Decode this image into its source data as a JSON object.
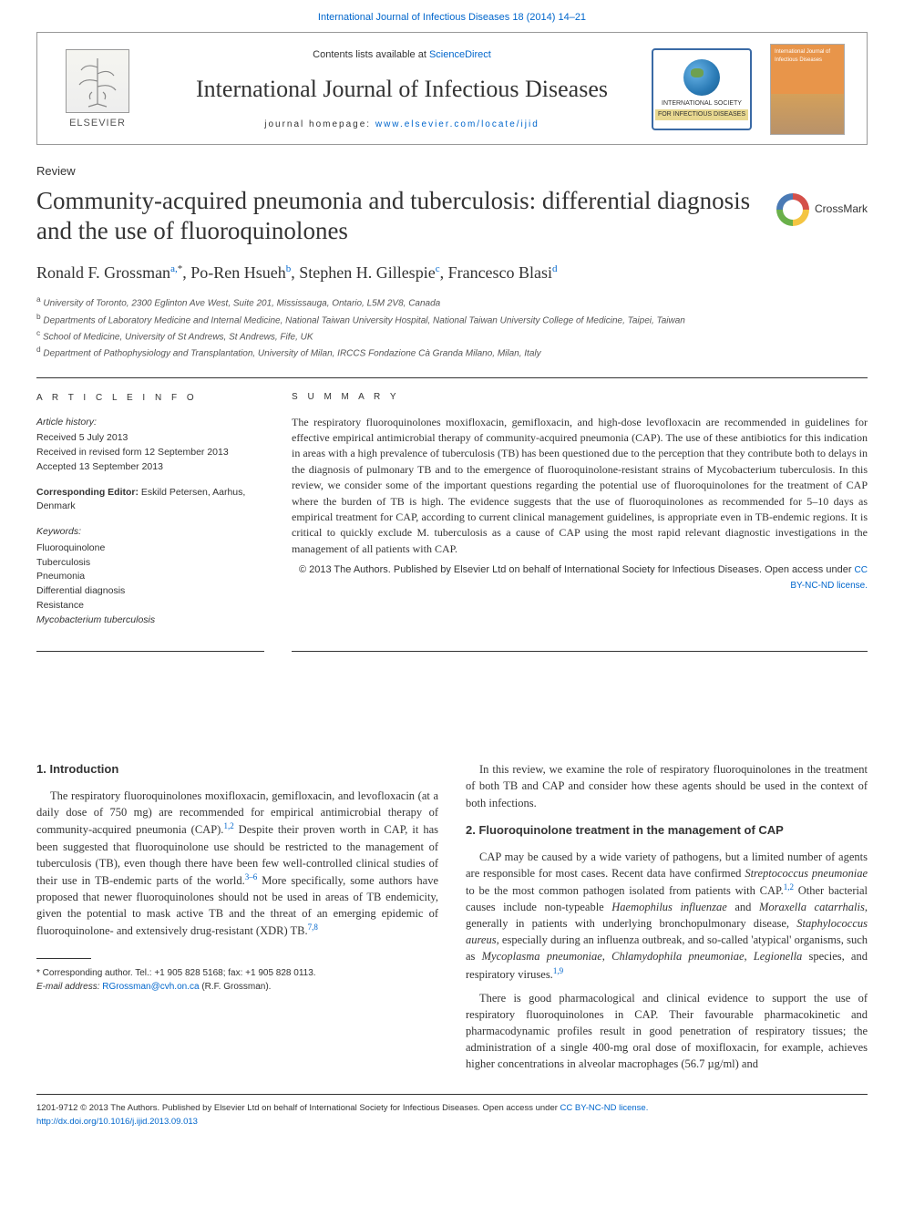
{
  "colors": {
    "link": "#0066cc",
    "text": "#333333",
    "rule": "#333333",
    "border": "#999999",
    "background": "#ffffff"
  },
  "typography": {
    "serif": "Georgia, 'Times New Roman', serif",
    "sans": "Arial, sans-serif",
    "title_size_pt": 27,
    "journal_title_size_pt": 26,
    "body_size_pt": 12.5,
    "abstract_size_pt": 12,
    "info_size_pt": 10.5
  },
  "top_citation": "International Journal of Infectious Diseases 18 (2014) 14–21",
  "header": {
    "contents_prefix": "Contents lists available at ",
    "contents_link": "ScienceDirect",
    "journal_title": "International Journal of Infectious Diseases",
    "homepage_prefix": "journal homepage: ",
    "homepage_url": "www.elsevier.com/locate/ijid",
    "publisher_name": "ELSEVIER",
    "society_line1": "INTERNATIONAL SOCIETY",
    "society_line2": "FOR INFECTIOUS DISEASES",
    "cover_text": "International Journal of Infectious Diseases"
  },
  "article": {
    "type": "Review",
    "title": "Community-acquired pneumonia and tuberculosis: differential diagnosis and the use of fluoroquinolones",
    "crossmark": "CrossMark",
    "authors_html": "Ronald F. Grossman<sup>a,</sup><sup class='ast'>*</sup>, Po-Ren Hsueh<sup>b</sup>, Stephen H. Gillespie<sup>c</sup>, Francesco Blasi<sup>d</sup>",
    "affiliations": [
      "a University of Toronto, 2300 Eglinton Ave West, Suite 201, Mississauga, Ontario, L5M 2V8, Canada",
      "b Departments of Laboratory Medicine and Internal Medicine, National Taiwan University Hospital, National Taiwan University College of Medicine, Taipei, Taiwan",
      "c School of Medicine, University of St Andrews, St Andrews, Fife, UK",
      "d Department of Pathophysiology and Transplantation, University of Milan, IRCCS Fondazione Cà Granda Milano, Milan, Italy"
    ]
  },
  "info": {
    "label": "A R T I C L E   I N F O",
    "history_label": "Article history:",
    "history": [
      "Received 5 July 2013",
      "Received in revised form 12 September 2013",
      "Accepted 13 September 2013"
    ],
    "editor_label": "Corresponding Editor:",
    "editor": "Eskild Petersen, Aarhus, Denmark",
    "keywords_label": "Keywords:",
    "keywords": [
      "Fluoroquinolone",
      "Tuberculosis",
      "Pneumonia",
      "Differential diagnosis",
      "Resistance",
      "Mycobacterium tuberculosis"
    ]
  },
  "summary": {
    "label": "S U M M A R Y",
    "text": "The respiratory fluoroquinolones moxifloxacin, gemifloxacin, and high-dose levofloxacin are recommended in guidelines for effective empirical antimicrobial therapy of community-acquired pneumonia (CAP). The use of these antibiotics for this indication in areas with a high prevalence of tuberculosis (TB) has been questioned due to the perception that they contribute both to delays in the diagnosis of pulmonary TB and to the emergence of fluoroquinolone-resistant strains of Mycobacterium tuberculosis. In this review, we consider some of the important questions regarding the potential use of fluoroquinolones for the treatment of CAP where the burden of TB is high. The evidence suggests that the use of fluoroquinolones as recommended for 5–10 days as empirical treatment for CAP, according to current clinical management guidelines, is appropriate even in TB-endemic regions. It is critical to quickly exclude M. tuberculosis as a cause of CAP using the most rapid relevant diagnostic investigations in the management of all patients with CAP.",
    "copyright": "© 2013 The Authors. Published by Elsevier Ltd on behalf of International Society for Infectious Diseases.",
    "license_prefix": "Open access under ",
    "license_link": "CC BY-NC-ND license."
  },
  "body": {
    "s1_heading": "1. Introduction",
    "s1_p1": "The respiratory fluoroquinolones moxifloxacin, gemifloxacin, and levofloxacin (at a daily dose of 750 mg) are recommended for empirical antimicrobial therapy of community-acquired pneumonia (CAP).<sup>1,2</sup> Despite their proven worth in CAP, it has been suggested that fluoroquinolone use should be restricted to the management of tuberculosis (TB), even though there have been few well-controlled clinical studies of their use in TB-endemic parts of the world.<sup>3–6</sup> More specifically, some authors have proposed that newer fluoroquinolones should not be used in areas of TB endemicity, given the potential to mask active TB and the threat of an emerging epidemic of fluoroquinolone- and extensively drug-resistant (XDR) TB.<sup>7,8</sup>",
    "s1_p2": "In this review, we examine the role of respiratory fluoroquinolones in the treatment of both TB and CAP and consider how these agents should be used in the context of both infections.",
    "s2_heading": "2. Fluoroquinolone treatment in the management of CAP",
    "s2_p1": "CAP may be caused by a wide variety of pathogens, but a limited number of agents are responsible for most cases. Recent data have confirmed <em>Streptococcus pneumoniae</em> to be the most common pathogen isolated from patients with CAP.<sup>1,2</sup> Other bacterial causes include non-typeable <em>Haemophilus influenzae</em> and <em>Moraxella catarrhalis</em>, generally in patients with underlying bronchopulmonary disease, <em>Staphylococcus aureus</em>, especially during an influenza outbreak, and so-called 'atypical' organisms, such as <em>Mycoplasma pneumoniae</em>, <em>Chlamydophila pneumoniae</em>, <em>Legionella</em> species, and respiratory viruses.<sup>1,9</sup>",
    "s2_p2": "There is good pharmacological and clinical evidence to support the use of respiratory fluoroquinolones in CAP. Their favourable pharmacokinetic and pharmacodynamic profiles result in good penetration of respiratory tissues; the administration of a single 400-mg oral dose of moxifloxacin, for example, achieves higher concentrations in alveolar macrophages (56.7 µg/ml) and"
  },
  "footnotes": {
    "corresponding": "* Corresponding author. Tel.: +1 905 828 5168; fax: +1 905 828 0113.",
    "email_label": "E-mail address:",
    "email": "RGrossman@cvh.on.ca",
    "email_suffix": "(R.F. Grossman)."
  },
  "footer": {
    "line1": "1201-9712 © 2013 The Authors. Published by Elsevier Ltd on behalf of International Society for Infectious Diseases.",
    "license_prefix": "Open access under ",
    "license_link": "CC BY-NC-ND license.",
    "doi": "http://dx.doi.org/10.1016/j.ijid.2013.09.013"
  }
}
